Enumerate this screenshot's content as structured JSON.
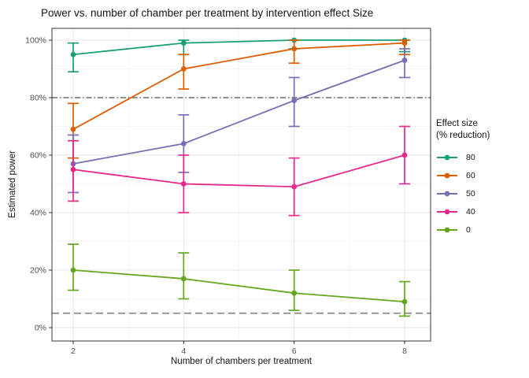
{
  "chart_data": {
    "type": "line",
    "title": "Power vs. number of chamber per treatment by intervention effect Size",
    "xlabel": "Number of chambers per treatment",
    "ylabel": "Estimated power",
    "x": [
      2,
      4,
      6,
      8
    ],
    "x_tick_labels": [
      "2",
      "4",
      "6",
      "8"
    ],
    "y_ticks": [
      {
        "v": 0,
        "label": "0%"
      },
      {
        "v": 20,
        "label": "20%"
      },
      {
        "v": 40,
        "label": "40%"
      },
      {
        "v": 60,
        "label": "60%"
      },
      {
        "v": 80,
        "label": "80%"
      },
      {
        "v": 100,
        "label": "100%"
      }
    ],
    "y_minor": [
      10,
      30,
      50,
      70,
      90
    ],
    "x_minor": [
      3,
      5,
      7
    ],
    "xlim": [
      2,
      8
    ],
    "ylim": [
      0,
      100
    ],
    "grid": "major+minor",
    "legend": {
      "position": "right",
      "title_line1": "Effect size",
      "title_line2": "(% reduction)"
    },
    "reference_lines": [
      {
        "y": 80,
        "style": "dashdot",
        "color": "#4d4d4d",
        "width": 1.2
      },
      {
        "y": 5,
        "style": "dashed",
        "color": "#8a8a8a",
        "width": 1.7
      }
    ],
    "series": [
      {
        "name": "80",
        "color": "#1B9E77",
        "values": [
          95,
          99,
          100,
          100
        ],
        "ci_low": [
          89,
          95,
          97,
          96
        ],
        "ci_high": [
          99,
          100,
          100,
          100
        ]
      },
      {
        "name": "60",
        "color": "#D95F02",
        "values": [
          69,
          90,
          97,
          99
        ],
        "ci_low": [
          59,
          83,
          92,
          95
        ],
        "ci_high": [
          78,
          95,
          100,
          100
        ]
      },
      {
        "name": "50",
        "color": "#7570B3",
        "values": [
          57,
          64,
          79,
          93
        ],
        "ci_low": [
          47,
          54,
          70,
          87
        ],
        "ci_high": [
          67,
          74,
          87,
          97
        ]
      },
      {
        "name": "40",
        "color": "#E7298A",
        "values": [
          55,
          50,
          49,
          60
        ],
        "ci_low": [
          44,
          40,
          39,
          50
        ],
        "ci_high": [
          65,
          60,
          59,
          70
        ]
      },
      {
        "name": "0",
        "color": "#66A61E",
        "values": [
          20,
          17,
          12,
          9
        ],
        "ci_low": [
          13,
          10,
          6,
          4
        ],
        "ci_high": [
          29,
          26,
          20,
          16
        ]
      }
    ],
    "colors": {
      "grid_major": "#e4e4e4",
      "grid_minor": "#f2f2f2",
      "panel_border": "#343434",
      "tick_label": "#4d4d4d",
      "text": "#141414"
    }
  }
}
